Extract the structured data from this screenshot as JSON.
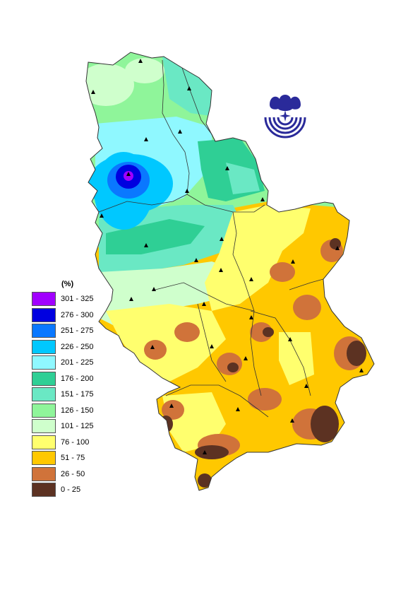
{
  "legend": {
    "unit": "(%)",
    "classes": [
      {
        "label": "301 - 325",
        "color": "#a100ff"
      },
      {
        "label": "276 - 300",
        "color": "#0000e0"
      },
      {
        "label": "251 - 275",
        "color": "#0a78ff"
      },
      {
        "label": "226 - 250",
        "color": "#00c8ff"
      },
      {
        "label": "201 - 225",
        "color": "#8ff8ff"
      },
      {
        "label": "176 - 200",
        "color": "#2fcf95"
      },
      {
        "label": "151 - 175",
        "color": "#6ae8c4"
      },
      {
        "label": "126 - 150",
        "color": "#8ff59a"
      },
      {
        "label": "101 - 125",
        "color": "#cfffcc"
      },
      {
        "label": "76 - 100",
        "color": "#ffff6e"
      },
      {
        "label": "51 - 75",
        "color": "#ffc800"
      },
      {
        "label": "26 - 50",
        "color": "#d0733a"
      },
      {
        "label": "0 - 25",
        "color": "#5c3222"
      }
    ]
  },
  "logo": {
    "icon": "institute-emblem-icon",
    "color": "#2a2a9a"
  },
  "map": {
    "station_marker": "triangle-icon"
  }
}
